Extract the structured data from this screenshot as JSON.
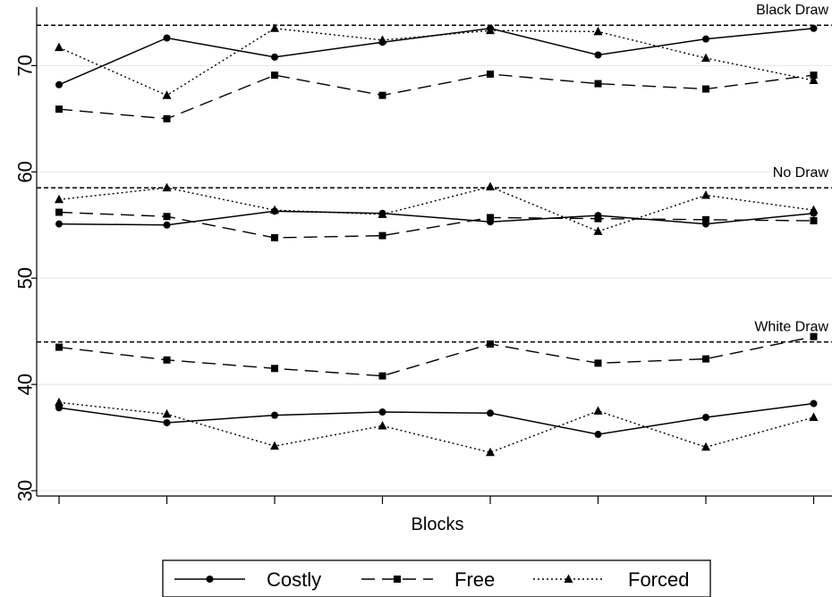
{
  "chart_data": {
    "type": "line",
    "xlabel": "Blocks",
    "ylabel": "",
    "ylim": [
      29.5,
      75.5
    ],
    "yticks": [
      30,
      40,
      50,
      60,
      70
    ],
    "x": [
      1,
      2,
      3,
      4,
      5,
      6,
      7,
      8
    ],
    "grid": true,
    "legend_position": "bottom",
    "reference_lines": [
      {
        "label": "Black Draw",
        "value": 73.8
      },
      {
        "label": "No Draw",
        "value": 58.5
      },
      {
        "label": "White Draw",
        "value": 44.0
      }
    ],
    "series": [
      {
        "name": "Costly",
        "group": "Black Draw",
        "style": "solid",
        "marker": "circle",
        "values": [
          68.2,
          72.6,
          70.8,
          72.2,
          73.5,
          71.0,
          72.5,
          73.5
        ]
      },
      {
        "name": "Free",
        "group": "Black Draw",
        "style": "dashed",
        "marker": "square",
        "values": [
          65.9,
          65.0,
          69.1,
          67.2,
          69.2,
          68.3,
          67.8,
          69.1
        ]
      },
      {
        "name": "Forced",
        "group": "Black Draw",
        "style": "dotted",
        "marker": "triangle",
        "values": [
          71.7,
          67.2,
          73.5,
          72.4,
          73.3,
          73.2,
          70.7,
          68.6
        ]
      },
      {
        "name": "Costly",
        "group": "No Draw",
        "style": "solid",
        "marker": "circle",
        "values": [
          55.1,
          55.0,
          56.3,
          56.1,
          55.3,
          55.9,
          55.1,
          56.1
        ]
      },
      {
        "name": "Free",
        "group": "No Draw",
        "style": "dashed",
        "marker": "square",
        "values": [
          56.2,
          55.8,
          53.8,
          54.0,
          55.7,
          55.6,
          55.5,
          55.4
        ]
      },
      {
        "name": "Forced",
        "group": "No Draw",
        "style": "dotted",
        "marker": "triangle",
        "values": [
          57.4,
          58.5,
          56.4,
          56.0,
          58.6,
          54.4,
          57.8,
          56.4
        ]
      },
      {
        "name": "Free",
        "group": "White Draw",
        "style": "dashed",
        "marker": "square",
        "values": [
          43.5,
          42.3,
          41.5,
          40.8,
          43.8,
          42.0,
          42.4,
          44.5
        ]
      },
      {
        "name": "Costly",
        "group": "White Draw",
        "style": "solid",
        "marker": "circle",
        "values": [
          37.8,
          36.4,
          37.1,
          37.4,
          37.3,
          35.3,
          36.9,
          38.2
        ]
      },
      {
        "name": "Forced",
        "group": "White Draw",
        "style": "dotted",
        "marker": "triangle",
        "values": [
          38.3,
          37.2,
          34.2,
          36.1,
          33.6,
          37.5,
          34.1,
          36.9
        ]
      }
    ],
    "legend": [
      {
        "name": "Costly",
        "style": "solid",
        "marker": "circle"
      },
      {
        "name": "Free",
        "style": "dashed",
        "marker": "square"
      },
      {
        "name": "Forced",
        "style": "dotted",
        "marker": "triangle"
      }
    ]
  }
}
